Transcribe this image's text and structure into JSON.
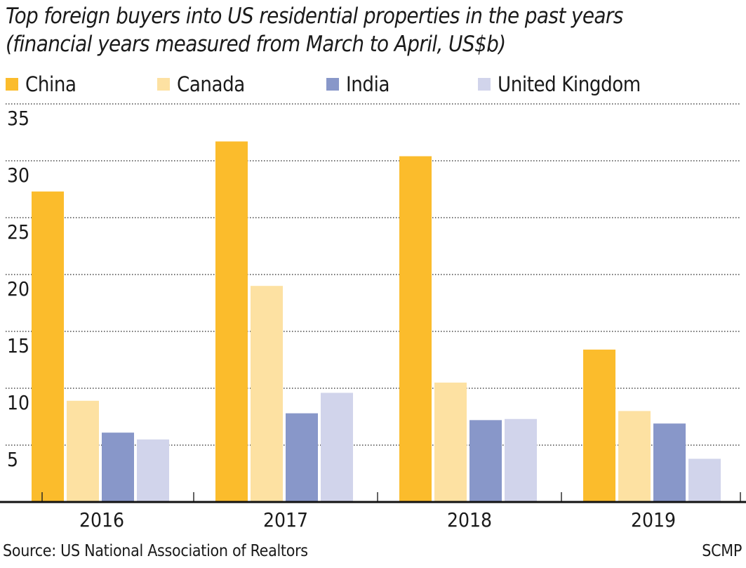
{
  "chart_data": {
    "type": "bar",
    "title": "Top foreign buyers into US residential properties in the past years",
    "subtitle": "(financial years measured from March to April, US$b)",
    "categories": [
      "2016",
      "2017",
      "2018",
      "2019"
    ],
    "series": [
      {
        "name": "China",
        "color": "#fbbc2c",
        "values": [
          27.3,
          31.7,
          30.4,
          13.4
        ]
      },
      {
        "name": "Canada",
        "color": "#fde1a2",
        "values": [
          8.9,
          19.0,
          10.5,
          8.0
        ]
      },
      {
        "name": "India",
        "color": "#8897c9",
        "values": [
          6.1,
          7.8,
          7.2,
          6.9
        ]
      },
      {
        "name": "United Kingdom",
        "color": "#d1d4eb",
        "values": [
          5.5,
          9.6,
          7.3,
          3.8
        ]
      }
    ],
    "yticks": [
      5,
      10,
      15,
      20,
      25,
      30,
      35
    ],
    "ylim": [
      0,
      35
    ],
    "grid": "horizontal-dotted",
    "legend": "top-left"
  },
  "source": "Source: US National Association of Realtors",
  "credit": "SCMP"
}
